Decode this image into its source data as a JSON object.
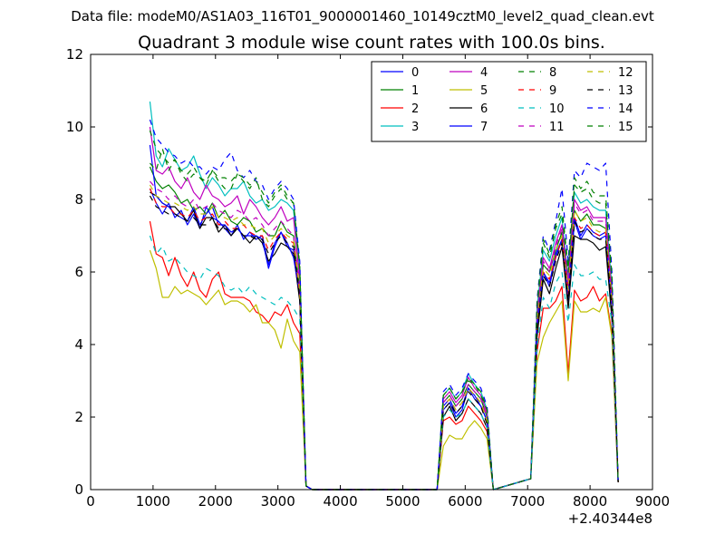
{
  "figure": {
    "supertitle": "Data file: modeM0/AS1A03_116T01_9000001460_10149cztM0_level2_quad_clean.evt"
  },
  "chart_data": {
    "type": "line",
    "title": "Quadrant 3 module wise count rates with 100.0s bins.",
    "xlabel": "",
    "ylabel": "",
    "x_offset_label": "+2.40344e8",
    "xlim": [
      0,
      9000
    ],
    "ylim": [
      0,
      12
    ],
    "xticks": [
      "0",
      "1000",
      "2000",
      "3000",
      "4000",
      "5000",
      "6000",
      "7000",
      "8000",
      "9000"
    ],
    "yticks": [
      "0",
      "2",
      "4",
      "6",
      "8",
      "10",
      "12"
    ],
    "grid": false,
    "legend_position": "top-right",
    "legend_columns": 4,
    "segments": [
      {
        "x": [
          950,
          1050,
          1150,
          1250,
          1350,
          1450,
          1550,
          1650,
          1750,
          1850,
          1950,
          2050,
          2150,
          2250,
          2350,
          2450,
          2550,
          2650,
          2750,
          2850,
          2950,
          3050,
          3150,
          3250,
          3350,
          3450,
          3550
        ]
      },
      {
        "x": [
          5550,
          5650,
          5750,
          5850,
          5950,
          6050,
          6150,
          6250,
          6350,
          6450
        ]
      },
      {
        "x": [
          7050,
          7150,
          7250,
          7350,
          7450,
          7550,
          7650,
          7750,
          7850,
          7950,
          8050,
          8150,
          8250,
          8350,
          8450
        ]
      }
    ],
    "gap_value": 0,
    "series": [
      {
        "name": "0",
        "color": "#0000ff",
        "style": "solid",
        "segments": [
          [
            8.3,
            7.9,
            7.6,
            7.9,
            7.5,
            7.7,
            7.3,
            7.6,
            7.2,
            7.8,
            7.5,
            7.4,
            7.2,
            7.0,
            7.3,
            6.9,
            7.1,
            6.9,
            7.0,
            6.2,
            6.8,
            7.1,
            6.7,
            6.6,
            5.3,
            0.1,
            0.0
          ],
          [
            0.0,
            2.2,
            2.4,
            2.0,
            2.2,
            2.8,
            2.5,
            2.3,
            1.9,
            0.0
          ],
          [
            0.3,
            4.4,
            6.0,
            5.6,
            6.4,
            6.9,
            5.2,
            7.4,
            6.9,
            7.2,
            7.0,
            6.9,
            7.0,
            5.0,
            0.2
          ]
        ]
      },
      {
        "name": "1",
        "color": "#008000",
        "style": "solid",
        "segments": [
          [
            8.9,
            8.5,
            8.3,
            8.4,
            8.2,
            7.9,
            8.0,
            7.7,
            7.8,
            7.6,
            7.9,
            7.5,
            7.7,
            7.4,
            7.3,
            7.5,
            7.4,
            7.1,
            7.2,
            7.0,
            7.0,
            7.4,
            7.1,
            7.0,
            5.5,
            0.1,
            0.0
          ],
          [
            0.0,
            2.4,
            2.6,
            2.3,
            2.5,
            2.9,
            2.7,
            2.5,
            2.0,
            0.0
          ],
          [
            0.3,
            4.6,
            6.2,
            6.0,
            6.6,
            7.1,
            5.6,
            7.7,
            7.4,
            7.6,
            7.3,
            7.3,
            7.2,
            5.2,
            0.2
          ]
        ]
      },
      {
        "name": "2",
        "color": "#ff0000",
        "style": "solid",
        "segments": [
          [
            7.4,
            6.5,
            6.4,
            5.9,
            6.4,
            5.9,
            5.6,
            6.0,
            5.5,
            5.3,
            5.8,
            6.0,
            5.4,
            5.3,
            5.3,
            5.3,
            5.2,
            4.9,
            4.8,
            4.6,
            4.9,
            4.8,
            5.1,
            4.6,
            4.3,
            0.1,
            0.0
          ],
          [
            0.0,
            1.9,
            2.0,
            1.8,
            1.9,
            2.3,
            2.1,
            1.9,
            1.6,
            0.0
          ],
          [
            0.3,
            3.8,
            5.0,
            5.0,
            5.2,
            5.6,
            3.2,
            5.5,
            5.2,
            5.3,
            5.6,
            5.2,
            5.4,
            4.3,
            0.2
          ]
        ]
      },
      {
        "name": "3",
        "color": "#00bfbf",
        "style": "solid",
        "segments": [
          [
            10.7,
            9.2,
            8.9,
            9.4,
            9.1,
            8.8,
            8.9,
            9.2,
            8.7,
            8.3,
            8.6,
            8.4,
            8.1,
            8.3,
            8.3,
            8.5,
            8.1,
            7.9,
            8.0,
            7.7,
            7.8,
            8.0,
            7.9,
            7.7,
            6.0,
            0.1,
            0.0
          ],
          [
            0.0,
            2.6,
            2.8,
            2.5,
            2.7,
            3.2,
            2.9,
            2.7,
            2.2,
            0.0
          ],
          [
            0.3,
            5.0,
            6.6,
            6.3,
            7.0,
            7.5,
            5.8,
            8.2,
            7.9,
            8.0,
            7.8,
            7.7,
            7.7,
            5.6,
            0.2
          ]
        ]
      },
      {
        "name": "4",
        "color": "#bf00bf",
        "style": "solid",
        "segments": [
          [
            10.0,
            8.8,
            8.7,
            8.9,
            8.5,
            8.3,
            8.6,
            8.2,
            8.0,
            8.4,
            8.1,
            8.0,
            7.8,
            7.9,
            8.1,
            7.6,
            8.0,
            7.8,
            7.5,
            7.3,
            7.5,
            7.8,
            7.4,
            7.5,
            5.8,
            0.1,
            0.0
          ],
          [
            0.0,
            2.5,
            2.7,
            2.4,
            2.6,
            3.1,
            2.8,
            2.6,
            2.1,
            0.0
          ],
          [
            0.3,
            4.8,
            6.4,
            6.1,
            6.8,
            7.3,
            5.7,
            8.0,
            7.7,
            7.8,
            7.5,
            7.5,
            7.5,
            5.4,
            0.2
          ]
        ]
      },
      {
        "name": "5",
        "color": "#bfbf00",
        "style": "solid",
        "segments": [
          [
            6.6,
            6.1,
            5.3,
            5.3,
            5.6,
            5.4,
            5.5,
            5.4,
            5.3,
            5.1,
            5.3,
            5.5,
            5.1,
            5.2,
            5.2,
            5.1,
            4.9,
            5.1,
            4.6,
            4.6,
            4.4,
            3.9,
            4.7,
            4.1,
            3.8,
            0.1,
            0.0
          ],
          [
            0.0,
            1.2,
            1.5,
            1.4,
            1.4,
            1.7,
            1.9,
            1.7,
            1.4,
            0.0
          ],
          [
            0.3,
            3.5,
            4.2,
            4.6,
            4.9,
            5.2,
            3.0,
            5.2,
            4.9,
            4.9,
            5.0,
            4.9,
            5.3,
            4.2,
            0.2
          ]
        ]
      },
      {
        "name": "6",
        "color": "#000000",
        "style": "solid",
        "segments": [
          [
            8.2,
            8.1,
            7.9,
            7.8,
            7.8,
            7.6,
            7.4,
            7.7,
            7.2,
            7.5,
            7.5,
            7.1,
            7.3,
            7.0,
            7.2,
            7.0,
            6.8,
            7.0,
            6.8,
            6.3,
            6.5,
            6.8,
            6.7,
            6.5,
            5.2,
            0.1,
            0.0
          ],
          [
            0.0,
            2.0,
            2.3,
            1.9,
            2.1,
            2.5,
            2.3,
            2.1,
            1.7,
            0.0
          ],
          [
            0.3,
            4.2,
            5.8,
            5.4,
            6.1,
            6.7,
            5.0,
            7.0,
            6.9,
            6.9,
            6.8,
            6.6,
            6.7,
            4.7,
            0.2
          ]
        ]
      },
      {
        "name": "7",
        "color": "#0000ff",
        "style": "solid",
        "segments": [
          [
            9.5,
            8.1,
            7.9,
            7.8,
            7.6,
            7.5,
            7.4,
            7.8,
            7.3,
            7.6,
            7.8,
            7.3,
            7.3,
            7.1,
            7.2,
            7.0,
            7.0,
            7.0,
            6.9,
            6.1,
            6.7,
            7.1,
            6.8,
            6.4,
            5.4,
            0.1,
            0.0
          ],
          [
            0.0,
            2.3,
            2.5,
            2.1,
            2.3,
            2.8,
            2.6,
            2.3,
            1.9,
            0.0
          ],
          [
            0.3,
            4.5,
            6.0,
            5.7,
            6.5,
            6.9,
            5.3,
            7.5,
            7.0,
            7.3,
            7.1,
            7.0,
            7.1,
            5.0,
            0.2
          ]
        ]
      },
      {
        "name": "8",
        "color": "#008000",
        "style": "dashed",
        "segments": [
          [
            9.0,
            8.8,
            9.4,
            8.8,
            9.1,
            8.7,
            8.5,
            8.7,
            8.6,
            8.4,
            8.8,
            8.5,
            8.3,
            8.3,
            8.7,
            8.5,
            8.3,
            8.6,
            8.0,
            7.8,
            8.1,
            8.3,
            8.0,
            7.9,
            6.2,
            0.1,
            0.0
          ],
          [
            0.0,
            2.6,
            2.8,
            2.5,
            2.7,
            3.0,
            2.9,
            2.6,
            2.2,
            0.0
          ],
          [
            0.3,
            5.0,
            6.8,
            6.4,
            7.2,
            7.6,
            6.0,
            8.4,
            8.2,
            8.3,
            8.0,
            7.9,
            7.9,
            5.8,
            0.2
          ]
        ]
      },
      {
        "name": "9",
        "color": "#ff0000",
        "style": "dashed",
        "segments": [
          [
            8.3,
            7.9,
            7.8,
            7.8,
            7.6,
            7.6,
            7.5,
            7.7,
            7.4,
            7.5,
            7.6,
            7.3,
            7.4,
            7.2,
            7.2,
            7.3,
            7.1,
            7.0,
            7.0,
            6.6,
            6.9,
            7.1,
            6.9,
            6.8,
            5.4,
            0.1,
            0.0
          ],
          [
            0.0,
            2.3,
            2.5,
            2.2,
            2.4,
            2.8,
            2.6,
            2.4,
            1.9,
            0.0
          ],
          [
            0.3,
            4.4,
            6.0,
            5.8,
            6.4,
            6.9,
            5.4,
            7.5,
            7.2,
            7.3,
            7.1,
            7.0,
            7.1,
            5.1,
            0.2
          ]
        ]
      },
      {
        "name": "10",
        "color": "#00bfbf",
        "style": "dashed",
        "segments": [
          [
            7.0,
            6.5,
            6.7,
            6.3,
            6.4,
            6.2,
            6.0,
            5.9,
            5.8,
            6.1,
            6.0,
            5.9,
            5.6,
            5.5,
            5.6,
            5.4,
            5.6,
            5.4,
            5.3,
            5.2,
            5.1,
            5.3,
            5.2,
            5.0,
            4.7,
            0.1,
            0.0
          ],
          [
            0.0,
            2.0,
            2.2,
            2.0,
            2.1,
            2.5,
            2.3,
            2.1,
            1.7,
            0.0
          ],
          [
            0.3,
            3.9,
            5.3,
            5.0,
            5.7,
            6.0,
            4.6,
            6.2,
            5.9,
            5.9,
            6.0,
            5.8,
            5.8,
            4.6,
            0.2
          ]
        ]
      },
      {
        "name": "11",
        "color": "#bf00bf",
        "style": "dashed",
        "segments": [
          [
            8.5,
            8.3,
            8.2,
            8.0,
            8.1,
            7.9,
            7.8,
            8.0,
            7.7,
            7.8,
            7.9,
            7.7,
            7.6,
            7.5,
            7.7,
            7.6,
            7.4,
            7.5,
            7.3,
            7.0,
            7.2,
            7.4,
            7.2,
            7.0,
            5.6,
            0.1,
            0.0
          ],
          [
            0.0,
            2.4,
            2.6,
            2.3,
            2.5,
            2.9,
            2.7,
            2.5,
            2.0,
            0.0
          ],
          [
            0.3,
            4.7,
            6.3,
            6.0,
            6.7,
            7.2,
            5.6,
            7.9,
            7.6,
            7.7,
            7.4,
            7.4,
            7.4,
            5.3,
            0.2
          ]
        ]
      },
      {
        "name": "12",
        "color": "#bfbf00",
        "style": "dashed",
        "segments": [
          [
            8.4,
            8.1,
            8.0,
            7.9,
            7.9,
            7.8,
            7.7,
            7.8,
            7.6,
            7.6,
            7.8,
            7.5,
            7.5,
            7.4,
            7.5,
            7.3,
            7.3,
            7.2,
            7.2,
            6.8,
            7.0,
            7.2,
            7.0,
            6.9,
            5.5,
            0.1,
            0.0
          ],
          [
            0.0,
            2.3,
            2.5,
            2.2,
            2.4,
            2.8,
            2.6,
            2.4,
            1.9,
            0.0
          ],
          [
            0.3,
            4.6,
            6.1,
            5.9,
            6.6,
            7.0,
            5.5,
            7.7,
            7.4,
            7.5,
            7.2,
            7.1,
            7.2,
            5.2,
            0.2
          ]
        ]
      },
      {
        "name": "13",
        "color": "#000000",
        "style": "dashed",
        "segments": [
          [
            8.1,
            7.8,
            7.7,
            7.6,
            7.6,
            7.5,
            7.4,
            7.5,
            7.3,
            7.3,
            7.5,
            7.2,
            7.2,
            7.1,
            7.2,
            7.0,
            7.0,
            6.9,
            6.9,
            6.5,
            6.8,
            7.0,
            6.8,
            6.7,
            5.3,
            0.1,
            0.0
          ],
          [
            0.0,
            2.2,
            2.4,
            2.1,
            2.3,
            2.7,
            2.5,
            2.3,
            1.8,
            0.0
          ],
          [
            0.3,
            4.4,
            5.9,
            5.6,
            6.3,
            6.8,
            5.2,
            7.4,
            7.1,
            7.2,
            7.0,
            6.9,
            6.9,
            5.0,
            0.2
          ]
        ]
      },
      {
        "name": "14",
        "color": "#0000ff",
        "style": "dashed",
        "segments": [
          [
            10.2,
            9.7,
            9.5,
            9.3,
            9.2,
            9.0,
            9.1,
            8.9,
            8.9,
            8.7,
            8.9,
            8.8,
            9.1,
            9.3,
            8.8,
            8.6,
            8.8,
            8.5,
            8.4,
            8.0,
            8.3,
            8.5,
            8.3,
            8.0,
            6.3,
            0.1,
            0.0
          ],
          [
            0.0,
            2.7,
            2.9,
            2.6,
            2.8,
            3.2,
            3.0,
            2.8,
            2.3,
            0.0
          ],
          [
            0.3,
            5.2,
            7.0,
            6.6,
            7.4,
            8.3,
            6.3,
            8.8,
            8.6,
            9.0,
            8.9,
            8.8,
            9.0,
            6.0,
            0.2
          ]
        ]
      },
      {
        "name": "15",
        "color": "#008000",
        "style": "dashed",
        "segments": [
          [
            9.9,
            9.4,
            9.2,
            9.0,
            9.1,
            8.8,
            8.7,
            8.9,
            8.6,
            8.5,
            8.8,
            8.6,
            8.6,
            8.5,
            8.7,
            8.6,
            8.4,
            8.5,
            8.2,
            7.9,
            8.2,
            8.4,
            8.1,
            7.9,
            6.1,
            0.1,
            0.0
          ],
          [
            0.0,
            2.6,
            2.8,
            2.5,
            2.7,
            3.1,
            2.9,
            2.7,
            2.2,
            0.0
          ],
          [
            0.3,
            5.1,
            6.9,
            6.5,
            7.3,
            7.8,
            6.1,
            8.6,
            8.3,
            8.5,
            8.2,
            8.1,
            8.1,
            5.9,
            0.2
          ]
        ]
      }
    ]
  }
}
